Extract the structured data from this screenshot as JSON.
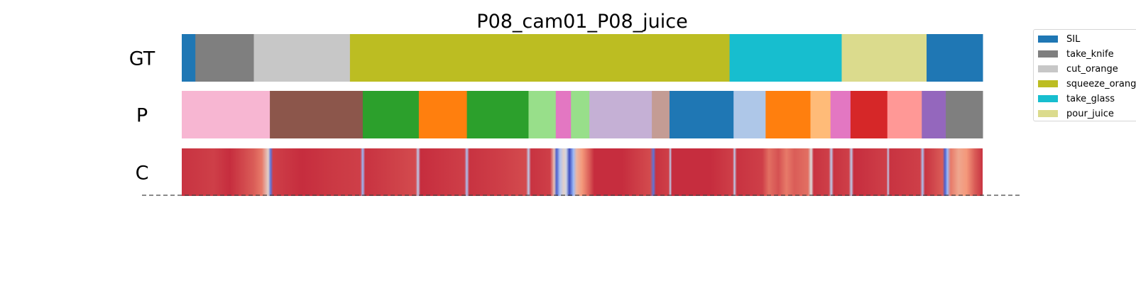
{
  "chart_data": {
    "type": "segmentation",
    "title": "P08_cam01_P08_juice",
    "rows": [
      {
        "label": "GT",
        "segments": [
          {
            "class": "SIL",
            "start": 0.0,
            "end": 1.7
          },
          {
            "class": "take_knife",
            "start": 1.7,
            "end": 9.0
          },
          {
            "class": "cut_orange",
            "start": 9.0,
            "end": 21.0
          },
          {
            "class": "squeeze_orange",
            "start": 21.0,
            "end": 68.4
          },
          {
            "class": "take_glass",
            "start": 68.4,
            "end": 82.4
          },
          {
            "class": "pour_juice",
            "start": 82.4,
            "end": 93.0
          },
          {
            "class": "SIL",
            "start": 93.0,
            "end": 100.0
          }
        ]
      },
      {
        "label": "P",
        "segments": [
          {
            "color": "#f7b6d2",
            "start": 0.0,
            "end": 11.0
          },
          {
            "color": "#8c564b",
            "start": 11.0,
            "end": 22.6
          },
          {
            "color": "#2ca02c",
            "start": 22.6,
            "end": 29.6
          },
          {
            "color": "#ff7f0e",
            "start": 29.6,
            "end": 35.6
          },
          {
            "color": "#2ca02c",
            "start": 35.6,
            "end": 43.3
          },
          {
            "color": "#98df8a",
            "start": 43.3,
            "end": 46.7
          },
          {
            "color": "#e377c2",
            "start": 46.7,
            "end": 48.6
          },
          {
            "color": "#98df8a",
            "start": 48.6,
            "end": 50.9
          },
          {
            "color": "#c5b0d5",
            "start": 50.9,
            "end": 58.7
          },
          {
            "color": "#c49c94",
            "start": 58.7,
            "end": 60.9
          },
          {
            "color": "#1f77b4",
            "start": 60.9,
            "end": 68.9
          },
          {
            "color": "#aec7e8",
            "start": 68.9,
            "end": 72.9
          },
          {
            "color": "#ff7f0e",
            "start": 72.9,
            "end": 78.5
          },
          {
            "color": "#ffbb78",
            "start": 78.5,
            "end": 81.0
          },
          {
            "color": "#e377c2",
            "start": 81.0,
            "end": 83.5
          },
          {
            "color": "#d62728",
            "start": 83.5,
            "end": 88.1
          },
          {
            "color": "#ff9896",
            "start": 88.1,
            "end": 92.4
          },
          {
            "color": "#9467bd",
            "start": 92.4,
            "end": 95.4
          },
          {
            "color": "#7f7f7f",
            "start": 95.4,
            "end": 100.0
          }
        ]
      },
      {
        "label": "C",
        "colormap": "coolwarm",
        "stops": [
          [
            0,
            0.92
          ],
          [
            4,
            0.9
          ],
          [
            6,
            0.93
          ],
          [
            9,
            0.85
          ],
          [
            10,
            0.8
          ],
          [
            10.8,
            0.55
          ],
          [
            11.1,
            0.1
          ],
          [
            11.4,
            0.9
          ],
          [
            15,
            0.93
          ],
          [
            19,
            0.91
          ],
          [
            22.3,
            0.9
          ],
          [
            22.6,
            0.3
          ],
          [
            22.9,
            0.92
          ],
          [
            29.2,
            0.88
          ],
          [
            29.5,
            0.4
          ],
          [
            29.8,
            0.93
          ],
          [
            35.3,
            0.9
          ],
          [
            35.6,
            0.35
          ],
          [
            35.9,
            0.92
          ],
          [
            40,
            0.9
          ],
          [
            43.0,
            0.88
          ],
          [
            43.3,
            0.4
          ],
          [
            43.6,
            0.92
          ],
          [
            46.0,
            0.9
          ],
          [
            46.5,
            0.6
          ],
          [
            46.8,
            0.05
          ],
          [
            47.2,
            0.35
          ],
          [
            47.7,
            0.55
          ],
          [
            48.0,
            0.45
          ],
          [
            48.4,
            0.0
          ],
          [
            48.9,
            0.3
          ],
          [
            49.3,
            0.65
          ],
          [
            50.0,
            0.75
          ],
          [
            50.9,
            0.85
          ],
          [
            51.5,
            0.93
          ],
          [
            55,
            0.93
          ],
          [
            58.5,
            0.88
          ],
          [
            58.9,
            0.1
          ],
          [
            59.2,
            0.92
          ],
          [
            60.8,
            0.9
          ],
          [
            61.0,
            0.4
          ],
          [
            61.2,
            0.93
          ],
          [
            66,
            0.93
          ],
          [
            68.8,
            0.9
          ],
          [
            69.0,
            0.4
          ],
          [
            69.3,
            0.92
          ],
          [
            72.5,
            0.9
          ],
          [
            73.3,
            0.82
          ],
          [
            74.5,
            0.87
          ],
          [
            75.5,
            0.8
          ],
          [
            76.5,
            0.85
          ],
          [
            78.2,
            0.82
          ],
          [
            78.6,
            0.5
          ],
          [
            78.9,
            0.92
          ],
          [
            80.8,
            0.9
          ],
          [
            81.1,
            0.4
          ],
          [
            81.4,
            0.92
          ],
          [
            83.3,
            0.9
          ],
          [
            83.6,
            0.4
          ],
          [
            83.9,
            0.93
          ],
          [
            88.0,
            0.9
          ],
          [
            88.2,
            0.4
          ],
          [
            88.4,
            0.92
          ],
          [
            92.2,
            0.9
          ],
          [
            92.5,
            0.35
          ],
          [
            92.8,
            0.92
          ],
          [
            95.0,
            0.85
          ],
          [
            95.3,
            0.05
          ],
          [
            95.6,
            0.3
          ],
          [
            96.0,
            0.8
          ],
          [
            97.0,
            0.7
          ],
          [
            98.0,
            0.75
          ],
          [
            99.0,
            0.85
          ],
          [
            100,
            0.92
          ]
        ]
      }
    ],
    "legend": [
      {
        "label": "SIL",
        "color": "#1f77b4"
      },
      {
        "label": "take_knife",
        "color": "#7f7f7f"
      },
      {
        "label": "cut_orange",
        "color": "#c7c7c7"
      },
      {
        "label": "squeeze_orange",
        "color": "#bcbd22"
      },
      {
        "label": "take_glass",
        "color": "#17becf"
      },
      {
        "label": "pour_juice",
        "color": "#dbdb8d"
      }
    ],
    "legend_placement": "upper right (outside axes)",
    "separator_line": "dashed"
  }
}
